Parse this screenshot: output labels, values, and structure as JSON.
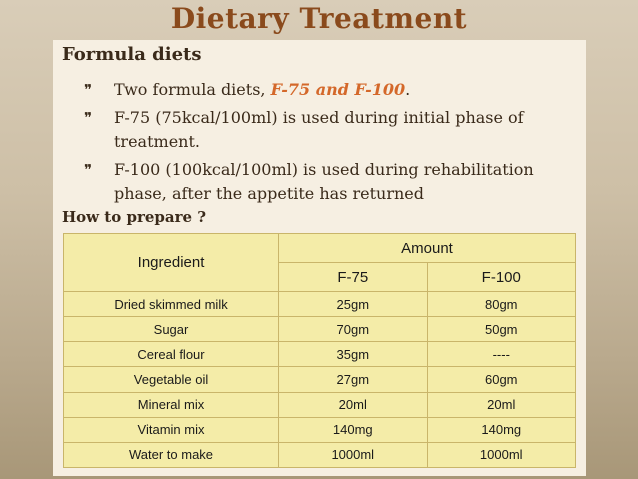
{
  "title": "Dietary Treatment",
  "subtitle": "Formula diets",
  "bullets": [
    {
      "icon": "swirl-bullet-icon",
      "pre": "Two formula diets, ",
      "highlight": "F-75 and F-100",
      "post": "."
    },
    {
      "icon": "swirl-bullet-icon",
      "text": "F-75 (75kcal/100ml) is used during initial phase of treatment."
    },
    {
      "icon": "swirl-bullet-icon",
      "text": "F-100 (100kcal/100ml) is used during rehabilitation phase, after the appetite has returned"
    }
  ],
  "how_to_prepare": "How to prepare ?",
  "table": {
    "header_ingredient": "Ingredient",
    "header_amount": "Amount",
    "sub_headers": [
      "F-75",
      "F-100"
    ],
    "rows": [
      [
        "Dried skimmed milk",
        "25gm",
        "80gm"
      ],
      [
        "Sugar",
        "70gm",
        "50gm"
      ],
      [
        "Cereal flour",
        "35gm",
        "----"
      ],
      [
        "Vegetable oil",
        "27gm",
        "60gm"
      ],
      [
        "Mineral mix",
        "20ml",
        "20ml"
      ],
      [
        "Vitamin mix",
        "140mg",
        "140mg"
      ],
      [
        "Water to make",
        "1000ml",
        "1000ml"
      ]
    ]
  },
  "colors": {
    "title": "#8a4a1c",
    "highlight": "#d4682a",
    "table_bg": "#f4eca8"
  }
}
